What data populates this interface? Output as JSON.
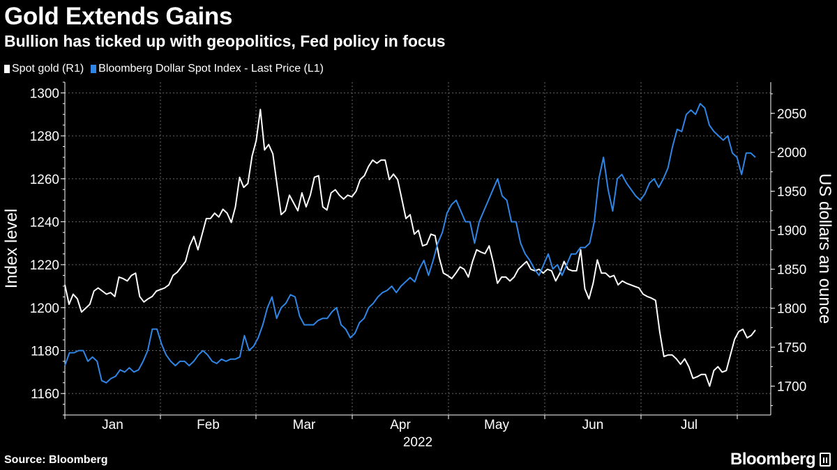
{
  "header": {
    "title": "Gold Extends Gains",
    "subtitle": "Bullion has ticked up with geopolitics, Fed policy in focus"
  },
  "legend": [
    {
      "label": "Spot gold (R1)",
      "color": "#ffffff"
    },
    {
      "label": "Bloomberg Dollar Spot Index - Last Price (L1)",
      "color": "#2f86e6"
    }
  ],
  "footer": {
    "source": "Source: Bloomberg",
    "brand": "Bloomberg"
  },
  "chart_data": {
    "type": "line",
    "xlabel": "2022",
    "months": [
      "Jan",
      "Feb",
      "Mar",
      "Apr",
      "May",
      "Jun",
      "Jul"
    ],
    "left_axis": {
      "label": "Index level",
      "ticks": [
        "1160",
        "1180",
        "1200",
        "1220",
        "1240",
        "1260",
        "1280",
        "1300"
      ],
      "range": [
        1150,
        1305
      ]
    },
    "right_axis": {
      "label": "US dollars an ounce",
      "ticks": [
        "1700",
        "1750",
        "1800",
        "1850",
        "1900",
        "1950",
        "2000",
        "2050"
      ],
      "range": [
        1663,
        2090
      ]
    },
    "grid": true,
    "series": [
      {
        "name": "Spot gold (R1)",
        "axis": "right",
        "color": "#ffffff",
        "values": [
          1830,
          1805,
          1818,
          1812,
          1795,
          1800,
          1805,
          1822,
          1826,
          1822,
          1818,
          1820,
          1815,
          1840,
          1838,
          1835,
          1842,
          1845,
          1815,
          1808,
          1812,
          1815,
          1822,
          1824,
          1826,
          1830,
          1842,
          1846,
          1853,
          1860,
          1880,
          1892,
          1875,
          1895,
          1915,
          1915,
          1922,
          1917,
          1927,
          1922,
          1910,
          1930,
          1968,
          1955,
          1960,
          1995,
          2015,
          2055,
          2003,
          2010,
          1998,
          1958,
          1920,
          1925,
          1945,
          1935,
          1925,
          1948,
          1930,
          1945,
          1968,
          1970,
          1930,
          1926,
          1948,
          1952,
          1945,
          1940,
          1945,
          1943,
          1950,
          1965,
          1970,
          1982,
          1990,
          1986,
          1990,
          1990,
          1965,
          1972,
          1965,
          1940,
          1915,
          1920,
          1895,
          1900,
          1880,
          1882,
          1895,
          1893,
          1865,
          1845,
          1842,
          1838,
          1845,
          1853,
          1850,
          1840,
          1860,
          1875,
          1872,
          1870,
          1880,
          1858,
          1832,
          1840,
          1840,
          1835,
          1840,
          1850,
          1855,
          1860,
          1850,
          1848,
          1850,
          1845,
          1850,
          1848,
          1835,
          1845,
          1860,
          1850,
          1848,
          1848,
          1875,
          1825,
          1812,
          1832,
          1862,
          1845,
          1845,
          1840,
          1842,
          1830,
          1835,
          1832,
          1830,
          1828,
          1826,
          1818,
          1815,
          1813,
          1810,
          1770,
          1738,
          1740,
          1740,
          1735,
          1728,
          1735,
          1725,
          1710,
          1712,
          1715,
          1715,
          1700,
          1720,
          1725,
          1718,
          1720,
          1740,
          1760,
          1770,
          1773,
          1762,
          1765,
          1772
        ]
      },
      {
        "name": "Bloomberg Dollar Spot Index - Last Price (L1)",
        "axis": "left",
        "color": "#2f86e6",
        "values": [
          1173,
          1179,
          1179,
          1180,
          1180,
          1175,
          1177,
          1175,
          1166,
          1165,
          1167,
          1168,
          1171,
          1170,
          1172,
          1170,
          1171,
          1175,
          1180,
          1190,
          1190,
          1183,
          1178,
          1175,
          1173,
          1175,
          1175,
          1173,
          1175,
          1178,
          1180,
          1178,
          1175,
          1174,
          1176,
          1175,
          1176,
          1176,
          1177,
          1187,
          1180,
          1182,
          1186,
          1192,
          1200,
          1205,
          1195,
          1200,
          1202,
          1206,
          1205,
          1196,
          1192,
          1192,
          1192,
          1194,
          1195,
          1195,
          1198,
          1200,
          1192,
          1190,
          1186,
          1188,
          1193,
          1195,
          1200,
          1202,
          1205,
          1207,
          1208,
          1210,
          1207,
          1210,
          1212,
          1214,
          1212,
          1218,
          1222,
          1215,
          1222,
          1230,
          1235,
          1244,
          1248,
          1250,
          1245,
          1240,
          1240,
          1230,
          1240,
          1245,
          1250,
          1255,
          1260,
          1252,
          1250,
          1240,
          1240,
          1230,
          1225,
          1222,
          1218,
          1215,
          1220,
          1225,
          1218,
          1220,
          1215,
          1220,
          1225,
          1225,
          1228,
          1228,
          1230,
          1240,
          1260,
          1270,
          1255,
          1245,
          1260,
          1262,
          1258,
          1255,
          1252,
          1250,
          1253,
          1258,
          1260,
          1256,
          1260,
          1265,
          1275,
          1283,
          1282,
          1290,
          1292,
          1290,
          1295,
          1293,
          1285,
          1282,
          1280,
          1278,
          1280,
          1272,
          1270,
          1262,
          1272,
          1272,
          1270
        ],
        "x_offset": 21
      }
    ]
  }
}
